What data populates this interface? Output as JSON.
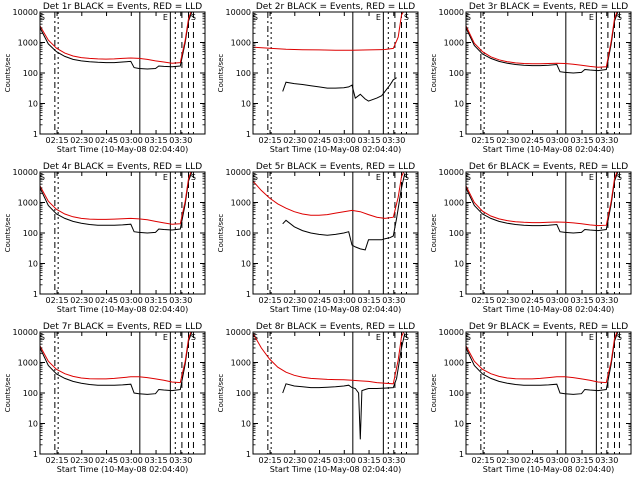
{
  "figure": {
    "xlabel": "Start Time (10-May-08 02:04:40)",
    "ylabel": "Counts/sec",
    "colors": {
      "events": "#000000",
      "lld": "#dd0000",
      "axes": "#000000"
    },
    "x_tick_labels": [
      "02:15",
      "02:30",
      "02:45",
      "03:00",
      "03:15",
      "03:30"
    ],
    "y_tick_labels": [
      "1",
      "10",
      "100",
      "1000",
      "10000"
    ]
  },
  "chart_data": [
    {
      "type": "line",
      "title": "Det 1r BLACK = Events, RED = LLD",
      "xlabel": "Start Time (10-May-08 02:04:40)",
      "ylabel": "Counts/sec",
      "x_unit": "minutes after 02:04:40",
      "xlim": [
        0,
        100
      ],
      "ylim": [
        1,
        10000
      ],
      "yscale": "log",
      "markers": [
        "S",
        "E",
        "S"
      ],
      "series": [
        {
          "name": "Events",
          "color": "#000000",
          "x": [
            0,
            5,
            10,
            15,
            20,
            25,
            30,
            35,
            40,
            45,
            50,
            55,
            57,
            60,
            65,
            70,
            72,
            75,
            80,
            85,
            88,
            90,
            92
          ],
          "y": [
            3000,
            900,
            500,
            350,
            280,
            250,
            235,
            225,
            220,
            220,
            230,
            240,
            150,
            140,
            135,
            140,
            170,
            165,
            160,
            170,
            1000,
            5000,
            10000
          ]
        },
        {
          "name": "LLD",
          "color": "#dd0000",
          "x": [
            0,
            5,
            10,
            15,
            20,
            25,
            30,
            35,
            40,
            45,
            50,
            55,
            60,
            65,
            70,
            75,
            80,
            85,
            88,
            90,
            92
          ],
          "y": [
            3500,
            1200,
            650,
            450,
            360,
            320,
            300,
            290,
            285,
            290,
            300,
            310,
            300,
            280,
            250,
            230,
            210,
            220,
            1200,
            6000,
            12000
          ]
        }
      ]
    },
    {
      "type": "line",
      "title": "Det 2r BLACK = Events, RED = LLD",
      "xlabel": "Start Time (10-May-08 02:04:40)",
      "ylabel": "Counts/sec",
      "x_unit": "minutes after 02:04:40",
      "xlim": [
        0,
        100
      ],
      "ylim": [
        1,
        10000
      ],
      "yscale": "log",
      "markers": [
        "S",
        "E",
        "S"
      ],
      "series": [
        {
          "name": "Events",
          "color": "#000000",
          "x": [
            18,
            20,
            25,
            30,
            35,
            40,
            45,
            50,
            55,
            58,
            60,
            62,
            65,
            68,
            70,
            75,
            78,
            80,
            83,
            85,
            87
          ],
          "y": [
            25,
            50,
            45,
            42,
            38,
            35,
            32,
            32,
            33,
            35,
            40,
            15,
            20,
            14,
            12,
            15,
            18,
            25,
            40,
            60,
            70
          ]
        },
        {
          "name": "LLD",
          "color": "#dd0000",
          "x": [
            0,
            10,
            20,
            30,
            40,
            50,
            60,
            70,
            80,
            85,
            88,
            90,
            92
          ],
          "y": [
            700,
            650,
            600,
            580,
            570,
            560,
            560,
            570,
            590,
            640,
            1500,
            8000,
            12000
          ]
        }
      ]
    },
    {
      "type": "line",
      "title": "Det 3r BLACK = Events, RED = LLD",
      "xlabel": "Start Time (10-May-08 02:04:40)",
      "ylabel": "Counts/sec",
      "x_unit": "minutes after 02:04:40",
      "xlim": [
        0,
        100
      ],
      "ylim": [
        1,
        10000
      ],
      "yscale": "log",
      "markers": [
        "S",
        "E",
        "S"
      ],
      "series": [
        {
          "name": "Events",
          "color": "#000000",
          "x": [
            0,
            5,
            10,
            15,
            20,
            25,
            30,
            35,
            40,
            45,
            50,
            55,
            57,
            60,
            65,
            70,
            72,
            75,
            80,
            85,
            88,
            90,
            92
          ],
          "y": [
            3000,
            800,
            420,
            300,
            240,
            210,
            190,
            180,
            175,
            175,
            180,
            190,
            110,
            105,
            100,
            105,
            130,
            125,
            120,
            130,
            900,
            5000,
            10000
          ]
        },
        {
          "name": "LLD",
          "color": "#dd0000",
          "x": [
            0,
            5,
            10,
            15,
            20,
            25,
            30,
            35,
            40,
            45,
            50,
            55,
            60,
            65,
            70,
            75,
            80,
            85,
            88,
            90,
            92
          ],
          "y": [
            3500,
            950,
            500,
            340,
            270,
            235,
            215,
            205,
            200,
            200,
            205,
            210,
            205,
            195,
            180,
            165,
            155,
            160,
            1100,
            6000,
            12000
          ]
        }
      ]
    },
    {
      "type": "line",
      "title": "Det 4r BLACK = Events, RED = LLD",
      "xlabel": "Start Time (10-May-08 02:04:40)",
      "ylabel": "Counts/sec",
      "x_unit": "minutes after 02:04:40",
      "xlim": [
        0,
        100
      ],
      "ylim": [
        1,
        10000
      ],
      "yscale": "log",
      "markers": [
        "S",
        "E",
        "S"
      ],
      "series": [
        {
          "name": "Events",
          "color": "#000000",
          "x": [
            0,
            5,
            10,
            15,
            20,
            25,
            30,
            35,
            40,
            45,
            50,
            55,
            57,
            60,
            65,
            70,
            72,
            75,
            80,
            85,
            88,
            90,
            92
          ],
          "y": [
            3000,
            800,
            420,
            300,
            240,
            210,
            190,
            180,
            180,
            180,
            185,
            195,
            110,
            105,
            100,
            105,
            135,
            130,
            125,
            135,
            900,
            5000,
            10000
          ]
        },
        {
          "name": "LLD",
          "color": "#dd0000",
          "x": [
            0,
            5,
            10,
            15,
            20,
            25,
            30,
            35,
            40,
            45,
            50,
            55,
            60,
            65,
            70,
            75,
            80,
            85,
            88,
            90,
            92
          ],
          "y": [
            3500,
            1100,
            600,
            420,
            340,
            300,
            285,
            280,
            280,
            285,
            295,
            300,
            290,
            270,
            240,
            215,
            195,
            200,
            1100,
            6000,
            12000
          ]
        }
      ]
    },
    {
      "type": "line",
      "title": "Det 5r BLACK = Events, RED = LLD",
      "xlabel": "Start Time (10-May-08 02:04:40)",
      "ylabel": "Counts/sec",
      "x_unit": "minutes after 02:04:40",
      "xlim": [
        0,
        100
      ],
      "ylim": [
        1,
        10000
      ],
      "yscale": "log",
      "markers": [
        "S",
        "E",
        "S"
      ],
      "series": [
        {
          "name": "Events",
          "color": "#000000",
          "x": [
            18,
            20,
            25,
            30,
            35,
            40,
            45,
            50,
            55,
            58,
            60,
            62,
            65,
            68,
            70,
            75,
            78,
            80,
            83,
            85,
            87,
            90,
            92
          ],
          "y": [
            200,
            260,
            160,
            120,
            100,
            90,
            85,
            90,
            100,
            110,
            40,
            35,
            30,
            28,
            60,
            60,
            60,
            65,
            70,
            80,
            300,
            3000,
            9000
          ]
        },
        {
          "name": "LLD",
          "color": "#dd0000",
          "x": [
            0,
            5,
            10,
            15,
            20,
            25,
            30,
            35,
            40,
            45,
            50,
            55,
            60,
            65,
            70,
            75,
            80,
            85,
            88,
            90,
            92
          ],
          "y": [
            5000,
            2500,
            1400,
            900,
            650,
            500,
            420,
            380,
            380,
            400,
            450,
            500,
            550,
            500,
            400,
            330,
            300,
            330,
            1500,
            7000,
            12000
          ]
        }
      ]
    },
    {
      "type": "line",
      "title": "Det 6r BLACK = Events, RED = LLD",
      "xlabel": "Start Time (10-May-08 02:04:40)",
      "ylabel": "Counts/sec",
      "x_unit": "minutes after 02:04:40",
      "xlim": [
        0,
        100
      ],
      "ylim": [
        1,
        10000
      ],
      "yscale": "log",
      "markers": [
        "S",
        "E",
        "S"
      ],
      "series": [
        {
          "name": "Events",
          "color": "#000000",
          "x": [
            0,
            5,
            10,
            15,
            20,
            25,
            30,
            35,
            40,
            45,
            50,
            55,
            57,
            60,
            65,
            70,
            72,
            75,
            80,
            85,
            88,
            90,
            92
          ],
          "y": [
            3000,
            800,
            420,
            300,
            240,
            210,
            190,
            180,
            175,
            175,
            180,
            190,
            110,
            105,
            100,
            105,
            130,
            125,
            120,
            130,
            900,
            5000,
            10000
          ]
        },
        {
          "name": "LLD",
          "color": "#dd0000",
          "x": [
            0,
            5,
            10,
            15,
            20,
            25,
            30,
            35,
            40,
            45,
            50,
            55,
            60,
            65,
            70,
            75,
            80,
            85,
            88,
            90,
            92
          ],
          "y": [
            3500,
            1000,
            520,
            360,
            290,
            255,
            235,
            225,
            220,
            220,
            225,
            230,
            225,
            215,
            200,
            185,
            175,
            180,
            1100,
            6000,
            12000
          ]
        }
      ]
    },
    {
      "type": "line",
      "title": "Det 7r BLACK = Events, RED = LLD",
      "xlabel": "Start Time (10-May-08 02:04:40)",
      "ylabel": "Counts/sec",
      "x_unit": "minutes after 02:04:40",
      "xlim": [
        0,
        100
      ],
      "ylim": [
        1,
        10000
      ],
      "yscale": "log",
      "markers": [
        "S",
        "E",
        "S"
      ],
      "series": [
        {
          "name": "Events",
          "color": "#000000",
          "x": [
            0,
            5,
            10,
            15,
            20,
            25,
            30,
            35,
            40,
            45,
            50,
            55,
            57,
            60,
            65,
            70,
            72,
            75,
            80,
            85,
            88,
            90,
            92
          ],
          "y": [
            3000,
            800,
            420,
            300,
            240,
            210,
            190,
            180,
            180,
            180,
            185,
            195,
            100,
            95,
            90,
            95,
            130,
            125,
            120,
            130,
            900,
            5000,
            10000
          ]
        },
        {
          "name": "LLD",
          "color": "#dd0000",
          "x": [
            0,
            5,
            10,
            15,
            20,
            25,
            30,
            35,
            40,
            45,
            50,
            55,
            60,
            65,
            70,
            75,
            80,
            85,
            88,
            90,
            92
          ],
          "y": [
            3500,
            1100,
            600,
            430,
            350,
            310,
            295,
            290,
            290,
            300,
            320,
            340,
            340,
            320,
            290,
            260,
            230,
            220,
            1100,
            6000,
            12000
          ]
        }
      ]
    },
    {
      "type": "line",
      "title": "Det 8r BLACK = Events, RED = LLD",
      "xlabel": "Start Time (10-May-08 02:04:40)",
      "ylabel": "Counts/sec",
      "x_unit": "minutes after 02:04:40",
      "xlim": [
        0,
        100
      ],
      "ylim": [
        1,
        10000
      ],
      "yscale": "log",
      "markers": [
        "S",
        "E",
        "S"
      ],
      "series": [
        {
          "name": "Events",
          "color": "#000000",
          "x": [
            18,
            20,
            25,
            30,
            35,
            40,
            45,
            50,
            55,
            58,
            60,
            62,
            64,
            65,
            66,
            68,
            70,
            75,
            80,
            85,
            87,
            90,
            92
          ],
          "y": [
            100,
            200,
            170,
            160,
            150,
            150,
            155,
            160,
            170,
            180,
            150,
            140,
            100,
            3,
            120,
            130,
            140,
            140,
            145,
            150,
            300,
            3000,
            9000
          ]
        },
        {
          "name": "LLD",
          "color": "#dd0000",
          "x": [
            0,
            5,
            10,
            15,
            20,
            25,
            30,
            35,
            40,
            45,
            50,
            55,
            60,
            65,
            70,
            75,
            80,
            85,
            88,
            90,
            92
          ],
          "y": [
            9000,
            3000,
            1300,
            700,
            480,
            380,
            330,
            300,
            290,
            280,
            275,
            270,
            260,
            250,
            240,
            220,
            210,
            200,
            1200,
            7000,
            12000
          ]
        }
      ]
    },
    {
      "type": "line",
      "title": "Det 9r BLACK = Events, RED = LLD",
      "xlabel": "Start Time (10-May-08 02:04:40)",
      "ylabel": "Counts/sec",
      "x_unit": "minutes after 02:04:40",
      "xlim": [
        0,
        100
      ],
      "ylim": [
        1,
        10000
      ],
      "yscale": "log",
      "markers": [
        "S",
        "E",
        "S"
      ],
      "series": [
        {
          "name": "Events",
          "color": "#000000",
          "x": [
            0,
            5,
            10,
            15,
            20,
            25,
            30,
            35,
            40,
            45,
            50,
            55,
            57,
            60,
            65,
            70,
            72,
            75,
            80,
            85,
            88,
            90,
            92
          ],
          "y": [
            3000,
            800,
            420,
            300,
            240,
            210,
            190,
            180,
            180,
            180,
            185,
            195,
            100,
            95,
            90,
            95,
            130,
            125,
            120,
            130,
            900,
            5000,
            10000
          ]
        },
        {
          "name": "LLD",
          "color": "#dd0000",
          "x": [
            0,
            5,
            10,
            15,
            20,
            25,
            30,
            35,
            40,
            45,
            50,
            55,
            60,
            65,
            70,
            75,
            80,
            85,
            88,
            90,
            92
          ],
          "y": [
            3500,
            1100,
            600,
            430,
            350,
            310,
            295,
            290,
            290,
            300,
            320,
            340,
            340,
            320,
            290,
            260,
            230,
            220,
            1100,
            6000,
            12000
          ]
        }
      ]
    }
  ]
}
